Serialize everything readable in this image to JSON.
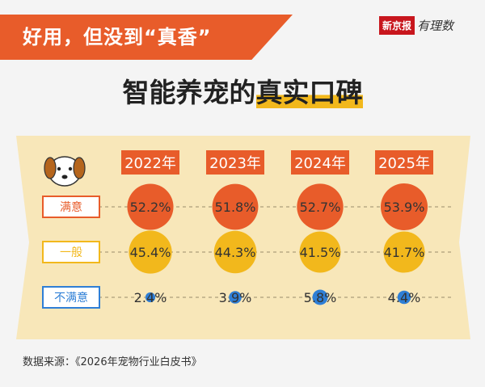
{
  "banner": {
    "text": "好用，但没到“真香”"
  },
  "brand": {
    "name": "新京报",
    "sub": "有理数"
  },
  "title": {
    "part1": "智能养宠的",
    "part2": "真实口碑"
  },
  "footer": {
    "source": "数据来源：《2026年宠物行业白皮书》"
  },
  "colors": {
    "orange": "#e85c2a",
    "yellow": "#f2b81c",
    "blue": "#2f7fd6",
    "panel": "#f8e7b9"
  },
  "chart_data": {
    "type": "bubble-table",
    "columns": [
      "2022年",
      "2023年",
      "2024年",
      "2025年"
    ],
    "rows": [
      {
        "label": "满意",
        "values": [
          52.2,
          51.8,
          52.7,
          53.9
        ],
        "labels": [
          "52.2%",
          "51.8%",
          "52.7%",
          "53.9%"
        ],
        "color": "#e85c2a"
      },
      {
        "label": "一般",
        "values": [
          45.4,
          44.3,
          41.5,
          41.7
        ],
        "labels": [
          "45.4%",
          "44.3%",
          "41.5%",
          "41.7%"
        ],
        "color": "#f2b81c"
      },
      {
        "label": "不满意",
        "values": [
          2.4,
          3.9,
          5.8,
          4.4
        ],
        "labels": [
          "2.4%",
          "3.9%",
          "5.8%",
          "4.4%"
        ],
        "color": "#2f7fd6"
      }
    ]
  }
}
